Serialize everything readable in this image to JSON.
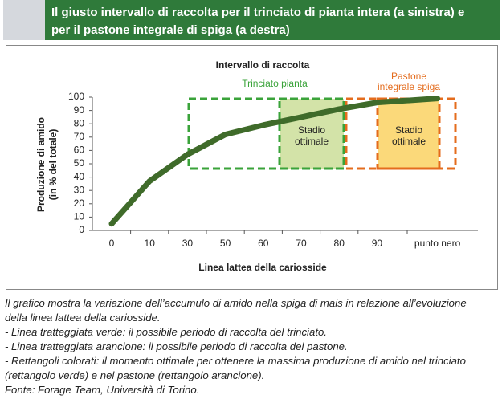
{
  "header": {
    "title": [
      "Il giusto intervallo di raccolta per il trinciato di pianta intera (a sinistra) e",
      "per il pastone integrale di spiga (a destra)"
    ]
  },
  "chart_data": {
    "type": "line",
    "title": "Intervallo di raccolta",
    "x_label": "Linea lattea della cariosside",
    "y_label": [
      "Produzione di amido",
      "(in % del totale)"
    ],
    "categories": [
      "0",
      "10",
      "30",
      "50",
      "60",
      "70",
      "80",
      "90",
      "punto nero"
    ],
    "series": [
      {
        "name": "Produzione di amido",
        "color": "#3f6b2a",
        "values": [
          5,
          37,
          57,
          72,
          79,
          85,
          91,
          96,
          99
        ]
      }
    ],
    "ylim": [
      0,
      100
    ],
    "yticks": [
      0,
      10,
      20,
      30,
      40,
      50,
      60,
      70,
      80,
      90,
      100
    ],
    "grid": false,
    "annotations": {
      "trinciato": "Trinciato pianta",
      "pastone": [
        "Pastone",
        "integrale spiga"
      ],
      "stadio": [
        "Stadio",
        "ottimale"
      ]
    }
  },
  "caption": [
    "Il grafico mostra la variazione dell’accumulo di amido nella spiga di mais in relazione all’evoluzione",
    "della linea lattea della cariosside.",
    "- Linea tratteggiata verde: il possibile periodo di raccolta del trinciato.",
    "- Linea tratteggiata arancione: il possibile periodo di raccolta del pastone.",
    "- Rettangoli colorati: il momento ottimale per ottenere la massima produzione di amido nel trinciato",
    "(rettangolo verde) e nel pastone (rettangolo arancione).",
    "Fonte: Forage Team, Università di Torino."
  ]
}
